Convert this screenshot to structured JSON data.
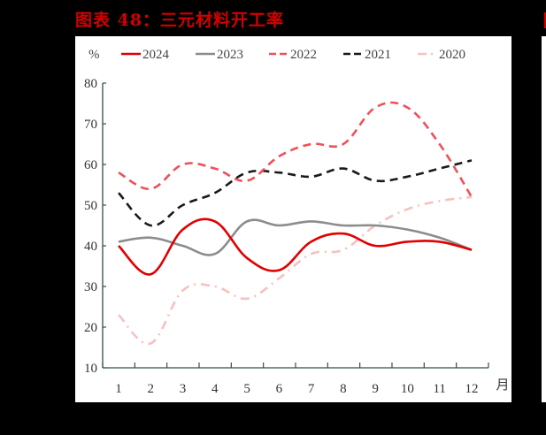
{
  "title": "图表 48：三元材料开工率",
  "colors": {
    "title": "#d40000",
    "s2024": "#e00000",
    "s2023": "#8c8c8c",
    "s2022": "#f05058",
    "s2021": "#1a1a1a",
    "s2020": "#f8c0c0",
    "axis": "#2f4f4f"
  },
  "chart_data": {
    "type": "line",
    "title": "图表 48：三元材料开工率",
    "xlabel": "月",
    "ylabel": "%",
    "x": [
      1,
      2,
      3,
      4,
      5,
      6,
      7,
      8,
      9,
      10,
      11,
      12
    ],
    "categories": [
      "1",
      "2",
      "3",
      "4",
      "5",
      "6",
      "7",
      "8",
      "9",
      "10",
      "11",
      "12"
    ],
    "ylim": [
      10,
      80
    ],
    "yticks": [
      10,
      20,
      30,
      40,
      50,
      60,
      70,
      80
    ],
    "grid": false,
    "legend_position": "top",
    "series": [
      {
        "name": "2024",
        "style": "solid",
        "values": [
          40,
          33,
          44,
          46,
          37,
          34,
          41,
          43,
          40,
          41,
          41,
          39
        ]
      },
      {
        "name": "2023",
        "style": "solid",
        "values": [
          41,
          42,
          40,
          38,
          46,
          45,
          46,
          45,
          45,
          44,
          42,
          39
        ]
      },
      {
        "name": "2022",
        "style": "dashed",
        "values": [
          58,
          54,
          60,
          59,
          56,
          62,
          65,
          65,
          74,
          74,
          65,
          52
        ]
      },
      {
        "name": "2021",
        "style": "dashed",
        "values": [
          53,
          45,
          50,
          53,
          58,
          58,
          57,
          59,
          56,
          57,
          59,
          61
        ]
      },
      {
        "name": "2020",
        "style": "dashdot",
        "values": [
          23,
          16,
          29,
          30,
          27,
          32,
          38,
          39,
          45,
          49,
          51,
          52
        ]
      }
    ]
  }
}
